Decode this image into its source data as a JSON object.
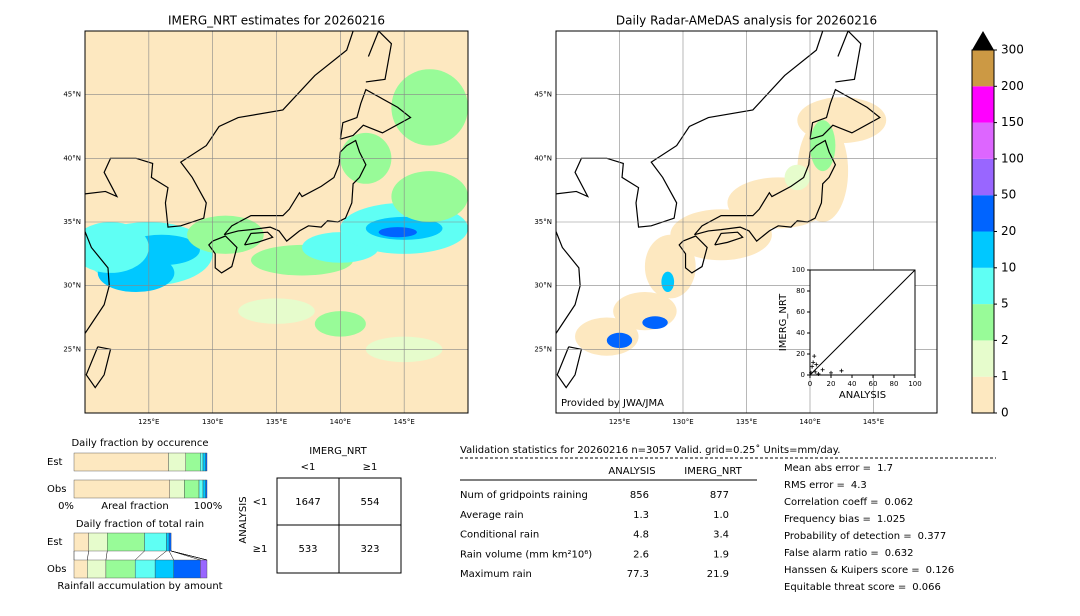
{
  "maps": [
    {
      "title": "IMERG_NRT estimates for 20260216",
      "xlim": [
        120,
        150
      ],
      "ylim": [
        20,
        50
      ],
      "xticks": [
        {
          "value": 125,
          "label": "125°E"
        },
        {
          "value": 130,
          "label": "130°E"
        },
        {
          "value": 135,
          "label": "135°E"
        },
        {
          "value": 140,
          "label": "140°E"
        },
        {
          "value": 145,
          "label": "145°E"
        }
      ],
      "yticks": [
        {
          "value": 25,
          "label": "25°N"
        },
        {
          "value": 30,
          "label": "30°N"
        },
        {
          "value": 35,
          "label": "35°N"
        },
        {
          "value": 40,
          "label": "40°N"
        },
        {
          "value": 45,
          "label": "45°N"
        }
      ]
    },
    {
      "title": "Daily Radar-AMeDAS analysis for 20260216",
      "credit": "Provided by JWA/JMA",
      "xlim": [
        120,
        150
      ],
      "ylim": [
        20,
        50
      ],
      "xticks": [
        {
          "value": 125,
          "label": "125°E"
        },
        {
          "value": 130,
          "label": "130°E"
        },
        {
          "value": 135,
          "label": "135°E"
        },
        {
          "value": 140,
          "label": "140°E"
        },
        {
          "value": 145,
          "label": "145°E"
        }
      ],
      "yticks": [
        {
          "value": 25,
          "label": "25°N"
        },
        {
          "value": 30,
          "label": "30°N"
        },
        {
          "value": 35,
          "label": "35°N"
        },
        {
          "value": 40,
          "label": "40°N"
        },
        {
          "value": 45,
          "label": "45°N"
        }
      ]
    }
  ],
  "colorbar": {
    "levels": [
      0,
      1,
      2,
      5,
      10,
      20,
      50,
      100,
      150,
      200,
      300
    ],
    "colors": [
      "#fde8c0",
      "#e6fccc",
      "#98fb98",
      "#5ffff4",
      "#00c8ff",
      "#0064ff",
      "#9966ff",
      "#dd66ff",
      "#ff00ff",
      "#cc9944"
    ]
  },
  "scatter": {
    "type": "scatter",
    "xlabel": "ANALYSIS",
    "ylabel": "IMERG_NRT",
    "xlim": [
      0,
      100
    ],
    "ylim": [
      0,
      100
    ],
    "xticks": [
      0,
      20,
      40,
      60,
      80,
      100
    ],
    "yticks": [
      0,
      20,
      40,
      60,
      80,
      100
    ],
    "x": [
      1,
      2,
      3,
      5,
      8,
      12,
      20,
      30,
      4,
      6
    ],
    "y": [
      2,
      8,
      12,
      3,
      1,
      5,
      2,
      4,
      18,
      10
    ]
  },
  "occurrence": {
    "title": "Daily fraction by occurence",
    "rows": [
      "Est",
      "Obs"
    ],
    "xlabel": "Areal fraction",
    "xmin_label": "0%",
    "xmax_label": "100%",
    "est": [
      0.71,
      0.13,
      0.11,
      0.02,
      0.02,
      0.01,
      0,
      0,
      0,
      0
    ],
    "obs": [
      0.72,
      0.11,
      0.11,
      0.03,
      0.02,
      0.01,
      0,
      0,
      0,
      0
    ]
  },
  "amount": {
    "title": "Daily fraction of total rain",
    "rows": [
      "Est",
      "Obs"
    ],
    "xlabel": "Rainfall accumulation by amount",
    "est": [
      0.11,
      0.14,
      0.28,
      0.165,
      0.02,
      0.015,
      0,
      0,
      0,
      0
    ],
    "obs": [
      0.1,
      0.14,
      0.22,
      0.15,
      0.14,
      0.2,
      0.05,
      0,
      0,
      0
    ]
  },
  "contingency": {
    "col_title": "IMERG_NRT",
    "col_labels": [
      "<1",
      "≥1"
    ],
    "row_title": "ANALYSIS",
    "row_labels": [
      "<1",
      "≥1"
    ],
    "cells": [
      [
        1647,
        554
      ],
      [
        533,
        323
      ]
    ]
  },
  "validation": {
    "title": "Validation statistics for 20260216  n=3057 Valid. grid=0.25˚ Units=mm/day.",
    "columns": [
      "ANALYSIS",
      "IMERG_NRT"
    ],
    "rows": [
      {
        "label": "Num of gridpoints raining",
        "values": [
          "856",
          "877"
        ]
      },
      {
        "label": "Average rain",
        "values": [
          "1.3",
          "1.0"
        ]
      },
      {
        "label": "Conditional rain",
        "values": [
          "4.8",
          "3.4"
        ]
      },
      {
        "label": "Rain volume (mm km²10⁶)",
        "values": [
          "2.6",
          "1.9"
        ]
      },
      {
        "label": "Maximum rain",
        "values": [
          "77.3",
          "21.9"
        ]
      }
    ],
    "scores": [
      {
        "label": "Mean abs error =",
        "value": "1.7"
      },
      {
        "label": "RMS error =",
        "value": "4.3"
      },
      {
        "label": "Correlation coeff =",
        "value": "0.062"
      },
      {
        "label": "Frequency bias =",
        "value": "1.025"
      },
      {
        "label": "Probability of detection =",
        "value": "0.377"
      },
      {
        "label": "False alarm ratio =",
        "value": "0.632"
      },
      {
        "label": "Hanssen & Kuipers score =",
        "value": "0.126"
      },
      {
        "label": "Equitable threat score =",
        "value": "0.066"
      }
    ]
  }
}
